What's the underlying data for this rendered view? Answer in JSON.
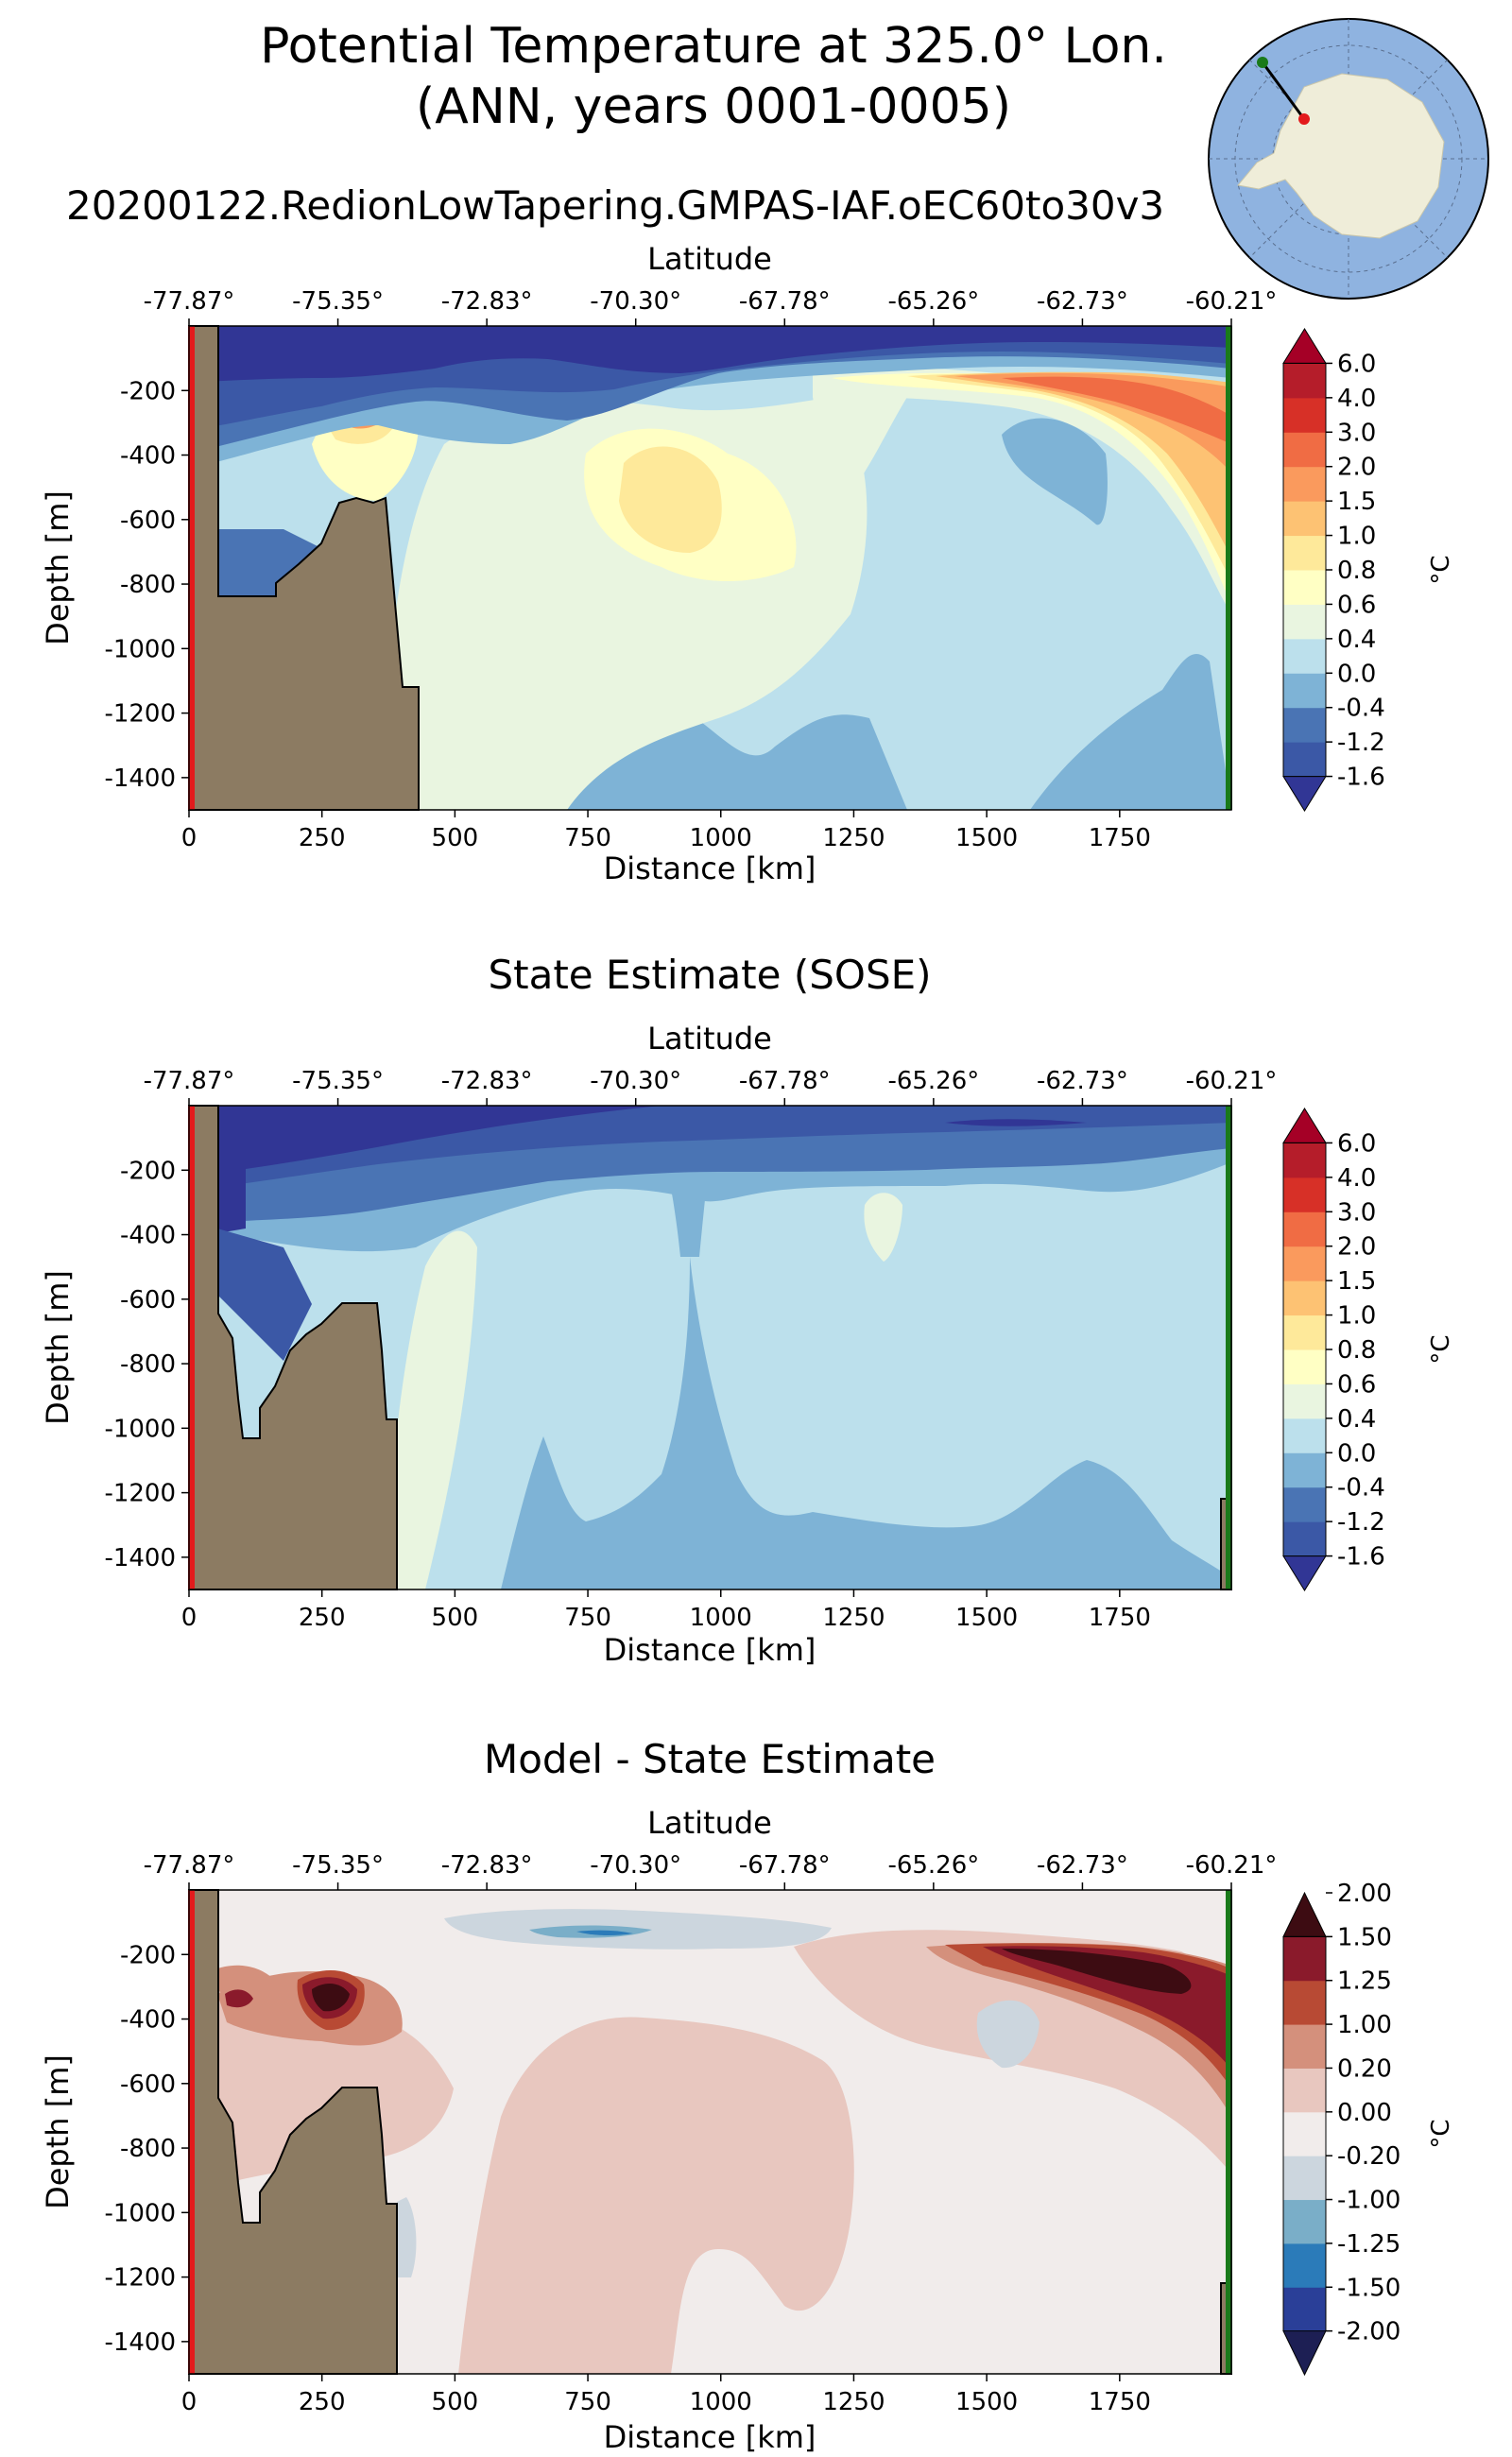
{
  "figure": {
    "title_line1": "Potential Temperature at 325.0° Lon.",
    "title_line2": "(ANN, years 0001-0005)",
    "run_name": "20200122.RedionLowTapering.GMPAS-IAF.oEC60to30v3",
    "inset_map": "antarctic-polar-stereographic-location-map"
  },
  "colors": {
    "land": "#8c7b62",
    "left_marker": "#e31a1c",
    "right_marker": "#1a7a1a"
  },
  "chart_data": [
    {
      "type": "filled-contour",
      "title": "",
      "xlabel": "Distance [km]",
      "ylabel": "Depth [m]",
      "top_axis_label": "Latitude",
      "xlim": [
        0,
        1960
      ],
      "ylim": [
        -1500,
        0
      ],
      "x_ticks": [
        "0",
        "250",
        "500",
        "750",
        "1000",
        "1250",
        "1500",
        "1750"
      ],
      "y_ticks": [
        "-200",
        "-400",
        "-600",
        "-800",
        "-1000",
        "-1200",
        "-1400"
      ],
      "lat_ticks": [
        "-77.87°",
        "-75.35°",
        "-72.83°",
        "-70.30°",
        "-67.78°",
        "-65.26°",
        "-62.73°",
        "-60.21°"
      ],
      "colorbar": {
        "unit": "°C",
        "levels": [
          "-1.6",
          "-1.2",
          "-0.4",
          "0.0",
          "0.4",
          "0.6",
          "0.8",
          "1.0",
          "1.5",
          "2.0",
          "3.0",
          "4.0",
          "6.0"
        ],
        "colors": [
          "#313695",
          "#3b58a6",
          "#4a74b4",
          "#7eb3d6",
          "#bce0ec",
          "#e9f5e0",
          "#ffffc4",
          "#fee99a",
          "#fdc273",
          "#fa9a5d",
          "#f06c44",
          "#d73027",
          "#b51d2a",
          "#a50026"
        ]
      },
      "bathymetry_km_m": [
        [
          0,
          -1500
        ],
        [
          0,
          0
        ],
        [
          60,
          0
        ],
        [
          60,
          -860
        ],
        [
          160,
          -860
        ],
        [
          160,
          -790
        ],
        [
          200,
          -700
        ],
        [
          240,
          -600
        ],
        [
          270,
          -470
        ],
        [
          300,
          -450
        ],
        [
          330,
          -470
        ],
        [
          350,
          -450
        ],
        [
          380,
          -1100
        ],
        [
          410,
          -1100
        ],
        [
          410,
          -1500
        ]
      ]
    },
    {
      "type": "filled-contour",
      "title": "State Estimate (SOSE)",
      "xlabel": "Distance [km]",
      "ylabel": "Depth [m]",
      "top_axis_label": "Latitude",
      "xlim": [
        0,
        1960
      ],
      "ylim": [
        -1500,
        0
      ],
      "x_ticks": [
        "0",
        "250",
        "500",
        "750",
        "1000",
        "1250",
        "1500",
        "1750"
      ],
      "y_ticks": [
        "-200",
        "-400",
        "-600",
        "-800",
        "-1000",
        "-1200",
        "-1400"
      ],
      "lat_ticks": [
        "-77.87°",
        "-75.35°",
        "-72.83°",
        "-70.30°",
        "-67.78°",
        "-65.26°",
        "-62.73°",
        "-60.21°"
      ],
      "colorbar": {
        "unit": "°C",
        "levels": [
          "-1.6",
          "-1.2",
          "-0.4",
          "0.0",
          "0.4",
          "0.6",
          "0.8",
          "1.0",
          "1.5",
          "2.0",
          "3.0",
          "4.0",
          "6.0"
        ],
        "colors": [
          "#313695",
          "#3b58a6",
          "#4a74b4",
          "#7eb3d6",
          "#bce0ec",
          "#e9f5e0",
          "#ffffc4",
          "#fee99a",
          "#fdc273",
          "#fa9a5d",
          "#f06c44",
          "#d73027",
          "#b51d2a",
          "#a50026"
        ]
      },
      "bathymetry_km_m": [
        [
          0,
          -1500
        ],
        [
          0,
          0
        ],
        [
          60,
          0
        ],
        [
          60,
          -430
        ],
        [
          90,
          -520
        ],
        [
          100,
          -720
        ],
        [
          110,
          -860
        ],
        [
          140,
          -860
        ],
        [
          140,
          -780
        ],
        [
          170,
          -700
        ],
        [
          200,
          -560
        ],
        [
          230,
          -500
        ],
        [
          260,
          -460
        ],
        [
          300,
          -380
        ],
        [
          370,
          -380
        ],
        [
          380,
          -560
        ],
        [
          390,
          -1000
        ],
        [
          410,
          -1000
        ],
        [
          410,
          -1500
        ]
      ],
      "bathymetry_right_km_m": [
        [
          1940,
          -1500
        ],
        [
          1940,
          -1170
        ],
        [
          1960,
          -1170
        ],
        [
          1960,
          -1500
        ]
      ]
    },
    {
      "type": "filled-contour",
      "title": "Model - State Estimate",
      "xlabel": "Distance [km]",
      "ylabel": "Depth [m]",
      "top_axis_label": "Latitude",
      "xlim": [
        0,
        1960
      ],
      "ylim": [
        -1500,
        0
      ],
      "x_ticks": [
        "0",
        "250",
        "500",
        "750",
        "1000",
        "1250",
        "1500",
        "1750"
      ],
      "y_ticks": [
        "-200",
        "-400",
        "-600",
        "-800",
        "-1000",
        "-1200",
        "-1400"
      ],
      "lat_ticks": [
        "-77.87°",
        "-75.35°",
        "-72.83°",
        "-70.30°",
        "-67.78°",
        "-65.26°",
        "-62.73°",
        "-60.21°"
      ],
      "colorbar": {
        "unit": "°C",
        "levels": [
          "-2.00",
          "-1.50",
          "-1.25",
          "-1.00",
          "-0.20",
          "0.00",
          "0.20",
          "1.00",
          "1.25",
          "1.50",
          "2.00"
        ],
        "colors": [
          "#1d1f54",
          "#2a3f98",
          "#2b7bb9",
          "#7aaec8",
          "#ccd6de",
          "#f1eceb",
          "#e8c7bf",
          "#d4907c",
          "#b84a34",
          "#8a1a2b",
          "#3d0c12"
        ]
      },
      "bathymetry_km_m": [
        [
          0,
          -1500
        ],
        [
          0,
          0
        ],
        [
          60,
          0
        ],
        [
          60,
          -430
        ],
        [
          90,
          -520
        ],
        [
          100,
          -720
        ],
        [
          110,
          -860
        ],
        [
          140,
          -860
        ],
        [
          140,
          -780
        ],
        [
          170,
          -700
        ],
        [
          200,
          -560
        ],
        [
          230,
          -500
        ],
        [
          260,
          -460
        ],
        [
          300,
          -380
        ],
        [
          370,
          -380
        ],
        [
          380,
          -560
        ],
        [
          390,
          -1000
        ],
        [
          410,
          -1000
        ],
        [
          410,
          -1500
        ]
      ],
      "bathymetry_right_km_m": [
        [
          1940,
          -1500
        ],
        [
          1940,
          -1170
        ],
        [
          1960,
          -1170
        ],
        [
          1960,
          -1500
        ]
      ]
    }
  ]
}
